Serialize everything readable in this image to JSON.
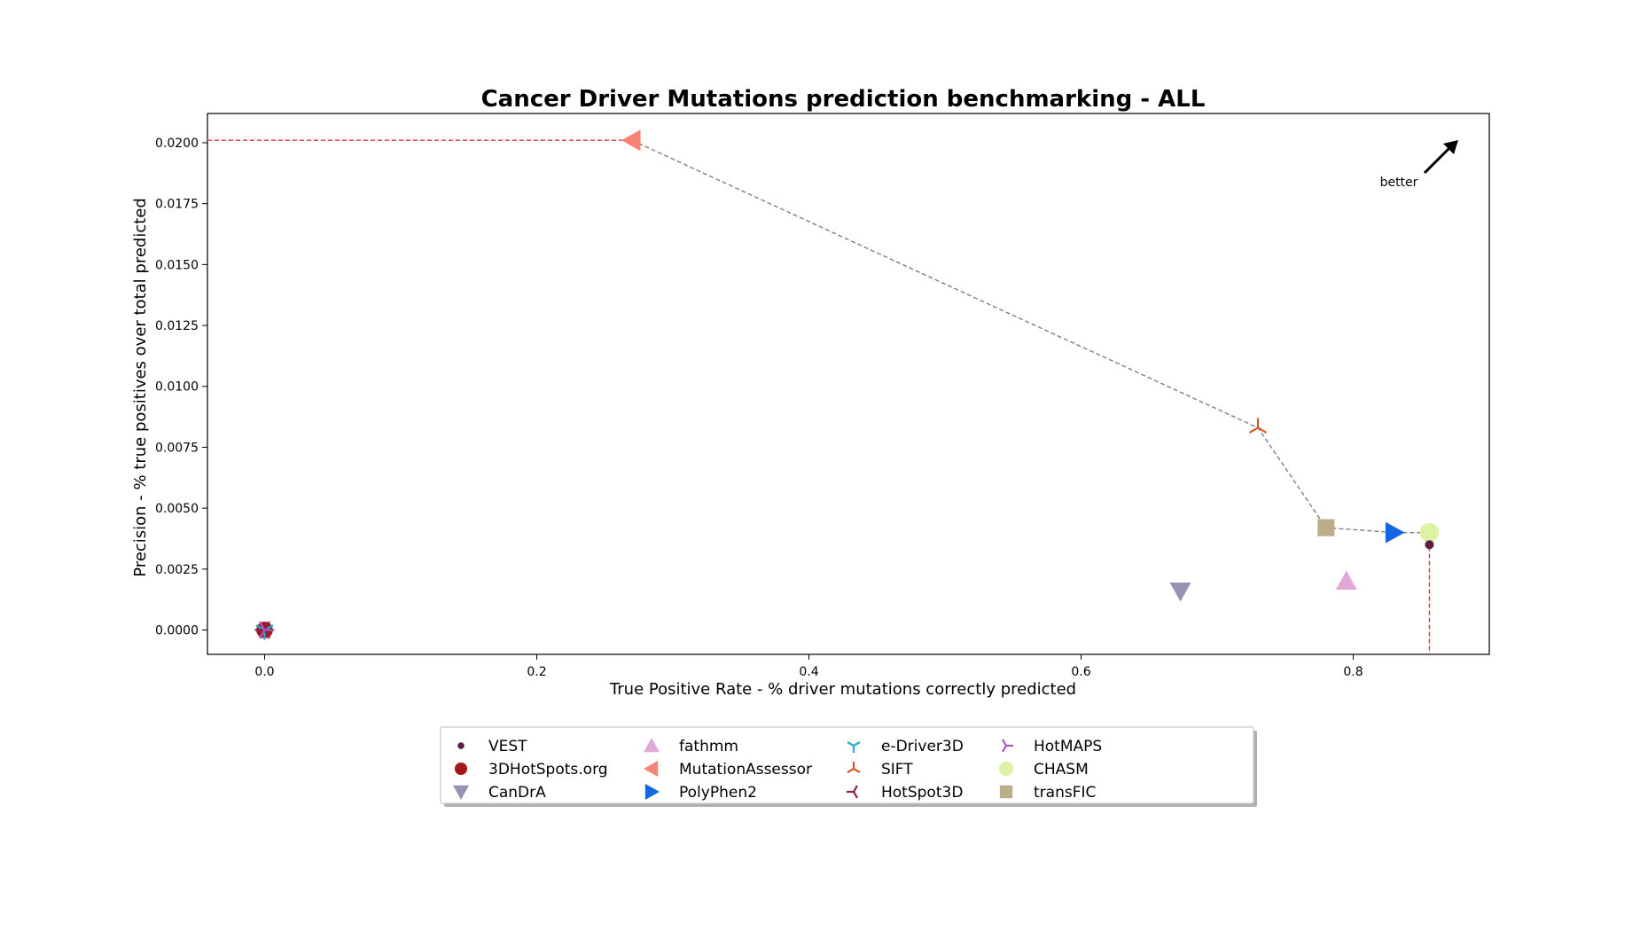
{
  "chart_data": {
    "type": "scatter",
    "title": "Cancer Driver Mutations prediction benchmarking - ALL",
    "xlabel": "True Positive Rate - % driver mutations correctly predicted",
    "ylabel": "Precision - % true positives over total predicted",
    "xlim": [
      -0.042,
      0.9
    ],
    "ylim": [
      -0.001,
      0.0212
    ],
    "x_ticks": [
      {
        "value": 0.0,
        "label": "0.0"
      },
      {
        "value": 0.2,
        "label": "0.2"
      },
      {
        "value": 0.4,
        "label": "0.4"
      },
      {
        "value": 0.6,
        "label": "0.6"
      },
      {
        "value": 0.8,
        "label": "0.8"
      }
    ],
    "y_ticks": [
      {
        "value": 0.0,
        "label": "0.0000"
      },
      {
        "value": 0.0025,
        "label": "0.0025"
      },
      {
        "value": 0.005,
        "label": "0.0050"
      },
      {
        "value": 0.0075,
        "label": "0.0075"
      },
      {
        "value": 0.01,
        "label": "0.0100"
      },
      {
        "value": 0.0125,
        "label": "0.0125"
      },
      {
        "value": 0.015,
        "label": "0.0150"
      },
      {
        "value": 0.0175,
        "label": "0.0175"
      },
      {
        "value": 0.02,
        "label": "0.0200"
      }
    ],
    "grid": false,
    "legend_position": "bottom-center",
    "annotation": "better",
    "series": [
      {
        "name": "VEST",
        "x": 0.856,
        "y": 0.0035,
        "marker": "circle-small",
        "color": "#5c1f45"
      },
      {
        "name": "3DHotSpots.org",
        "x": 0.0,
        "y": 0.0,
        "marker": "circle",
        "color": "#a31717"
      },
      {
        "name": "CanDrA",
        "x": 0.673,
        "y": 0.0016,
        "marker": "triangle-down",
        "color": "#9493b3"
      },
      {
        "name": "fathmm",
        "x": 0.795,
        "y": 0.002,
        "marker": "triangle-up",
        "color": "#e0a8d6"
      },
      {
        "name": "MutationAssessor",
        "x": 0.27,
        "y": 0.0201,
        "marker": "triangle-left",
        "color": "#f78275"
      },
      {
        "name": "PolyPhen2",
        "x": 0.83,
        "y": 0.004,
        "marker": "triangle-right",
        "color": "#1266e5"
      },
      {
        "name": "e-Driver3D",
        "x": 0.0,
        "y": 0.0,
        "marker": "tri-down",
        "color": "#1fb0c9"
      },
      {
        "name": "SIFT",
        "x": 0.73,
        "y": 0.0083,
        "marker": "tri-up",
        "color": "#d45a2b"
      },
      {
        "name": "HotSpot3D",
        "x": 0.0,
        "y": 0.0,
        "marker": "tri-left",
        "color": "#8a1f4a"
      },
      {
        "name": "HotMAPS",
        "x": 0.0,
        "y": 0.0,
        "marker": "tri-right",
        "color": "#a657c9"
      },
      {
        "name": "CHASM",
        "x": 0.856,
        "y": 0.004,
        "marker": "circle-large",
        "color": "#def2a3"
      },
      {
        "name": "transFIC",
        "x": 0.78,
        "y": 0.0042,
        "marker": "square",
        "color": "#bdae8a"
      }
    ],
    "pareto_frontier": [
      {
        "x": 0.27,
        "y": 0.0201
      },
      {
        "x": 0.73,
        "y": 0.0083
      },
      {
        "x": 0.78,
        "y": 0.0042
      },
      {
        "x": 0.83,
        "y": 0.004
      },
      {
        "x": 0.856,
        "y": 0.004
      }
    ],
    "reference_lines": {
      "horizontal_y": 0.0201,
      "vertical_x": 0.856,
      "color": "#e8363a",
      "frontier_color": "#808080"
    }
  }
}
